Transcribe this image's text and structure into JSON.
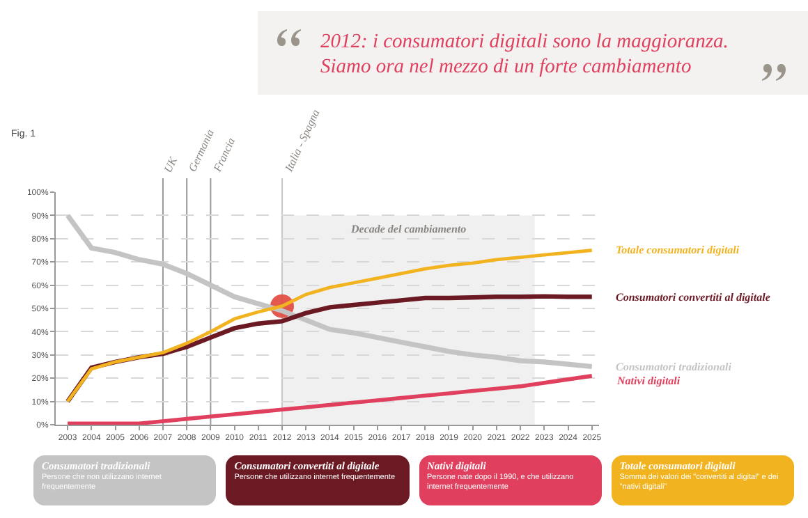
{
  "chart_data": {
    "type": "line",
    "title": "2012: i consumatori digitali sono la maggioranza. Siamo ora nel mezzo di un forte cambiamento",
    "x": [
      2003,
      2004,
      2005,
      2006,
      2007,
      2008,
      2009,
      2010,
      2011,
      2012,
      2013,
      2014,
      2015,
      2016,
      2017,
      2018,
      2019,
      2020,
      2021,
      2022,
      2023,
      2024,
      2025
    ],
    "series": [
      {
        "name": "Consumatori tradizionali",
        "color": "#c3c4c3",
        "values": [
          90,
          76,
          74,
          71,
          69,
          65,
          60,
          55,
          52,
          49,
          45,
          41,
          39.5,
          37.5,
          35.5,
          33.5,
          31.5,
          30,
          29,
          27.5,
          27,
          26,
          25
        ]
      },
      {
        "name": "Consumatori convertiti al digitale",
        "color": "#6b1a24",
        "values": [
          10,
          24.5,
          27,
          29,
          30.5,
          33.5,
          37.5,
          41.5,
          43.5,
          44.5,
          48,
          50.5,
          51.5,
          52.5,
          53.5,
          54.5,
          54.5,
          54.7,
          55,
          55,
          55.2,
          55,
          55
        ]
      },
      {
        "name": "Nativi digitali",
        "color": "#e0405e",
        "values": [
          0.5,
          0.5,
          0.5,
          0.5,
          1.5,
          2.5,
          3.5,
          4.5,
          5.5,
          6.5,
          7.5,
          8.5,
          9.5,
          10.5,
          11.5,
          12.5,
          13.5,
          14.5,
          15.5,
          16.5,
          18,
          19.5,
          21
        ]
      },
      {
        "name": "Totale consumatori digitali",
        "color": "#f2b321",
        "values": [
          10,
          24,
          27,
          29,
          31,
          35,
          40,
          45.5,
          48.5,
          51,
          56,
          59,
          61,
          63,
          65,
          67,
          68.5,
          69.5,
          71,
          72,
          73,
          74,
          75
        ]
      },
      {
        "type": "scatter",
        "color": "#e0463c",
        "marker": "circle",
        "x": [
          2012
        ],
        "values": [
          51
        ]
      }
    ],
    "xlim": [
      2002.5,
      2025.3
    ],
    "xticks": [
      2003,
      2004,
      2005,
      2006,
      2007,
      2008,
      2009,
      2010,
      2011,
      2012,
      2013,
      2014,
      2015,
      2016,
      2017,
      2018,
      2019,
      2020,
      2021,
      2022,
      2023,
      2024,
      2025
    ],
    "ylim": [
      0,
      100
    ],
    "yticks": [
      {
        "value": 0,
        "label": "0%"
      },
      {
        "value": 10,
        "label": "10%"
      },
      {
        "value": 20,
        "label": "20%"
      },
      {
        "value": 30,
        "label": "30%"
      },
      {
        "value": 40,
        "label": "40%"
      },
      {
        "value": 50,
        "label": "50%"
      },
      {
        "value": 60,
        "label": "60%"
      },
      {
        "value": 70,
        "label": "70%"
      },
      {
        "value": 80,
        "label": "80%"
      },
      {
        "value": 90,
        "label": "90%"
      },
      {
        "value": 100,
        "label": "100%"
      }
    ],
    "grid": "y",
    "legend": false,
    "marker": "none",
    "line_style": "solid",
    "ref_lines": [
      {
        "axis": "x",
        "value": 2007,
        "label": "UK",
        "color": "#9a9a9a"
      },
      {
        "axis": "x",
        "value": 2008,
        "label": "Germania",
        "color": "#9a9a9a"
      },
      {
        "axis": "x",
        "value": 2009,
        "label": "Francia",
        "color": "#9a9a9a"
      },
      {
        "axis": "x",
        "value": 2012,
        "label": "Italia - Spagna",
        "color": "#c8c8c8"
      }
    ],
    "bands": [
      {
        "axis": "x",
        "from": 2012,
        "to": 2022.6,
        "label": "Decade del cambiamento",
        "color": "#f0f0f0"
      }
    ],
    "annotations": [
      "Fig. 1",
      "Persone che non utilizzano internet frequentemente",
      "Persone che utilizzano internet frequentemente",
      "Persone nate dopo il 1990, e che utilizzano internet frequentemente",
      "Somma dei valori dei \"convertiti al digital\" e dei \"nativi digitali\""
    ]
  }
}
